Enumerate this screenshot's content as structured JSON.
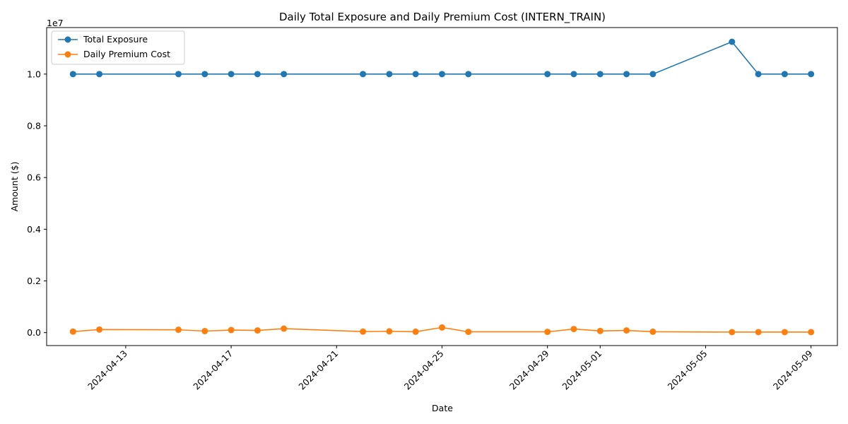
{
  "chart_data": {
    "type": "line",
    "title": "Daily Total Exposure and Daily Premium Cost (INTERN_TRAIN)",
    "xlabel": "Date",
    "ylabel": "Amount ($)",
    "y_offset_text": "1e7",
    "y_scale": 10000000,
    "ylim": [
      -500000,
      11800000
    ],
    "xlim": [
      "2024-04-10",
      "2024-05-10"
    ],
    "y_ticks": [
      0,
      2000000,
      4000000,
      6000000,
      8000000,
      10000000
    ],
    "y_tick_labels": [
      "0.0",
      "0.2",
      "0.4",
      "0.6",
      "0.8",
      "1.0"
    ],
    "x_ticks": [
      "2024-04-13",
      "2024-04-17",
      "2024-04-21",
      "2024-04-25",
      "2024-04-29",
      "2024-05-01",
      "2024-05-05",
      "2024-05-09"
    ],
    "x": [
      "2024-04-11",
      "2024-04-12",
      "2024-04-15",
      "2024-04-16",
      "2024-04-17",
      "2024-04-18",
      "2024-04-19",
      "2024-04-22",
      "2024-04-23",
      "2024-04-24",
      "2024-04-25",
      "2024-04-26",
      "2024-04-29",
      "2024-04-30",
      "2024-05-01",
      "2024-05-02",
      "2024-05-03",
      "2024-05-06",
      "2024-05-07",
      "2024-05-08",
      "2024-05-09"
    ],
    "series": [
      {
        "name": "Total Exposure",
        "color": "#1f77b4",
        "values": [
          10000000,
          10000000,
          10000000,
          10000000,
          10000000,
          10000000,
          10000000,
          10000000,
          10000000,
          10000000,
          10000000,
          10000000,
          10000000,
          10000000,
          10000000,
          10000000,
          10000000,
          11250000,
          10000000,
          10000000,
          10000000
        ]
      },
      {
        "name": "Daily Premium Cost",
        "color": "#ff7f0e",
        "values": [
          40000,
          120000,
          110000,
          60000,
          100000,
          85000,
          155000,
          40000,
          50000,
          35000,
          200000,
          30000,
          30000,
          140000,
          65000,
          85000,
          35000,
          20000,
          20000,
          20000,
          20000
        ]
      }
    ],
    "grid": false,
    "legend_position": "top-left",
    "markers": true
  }
}
